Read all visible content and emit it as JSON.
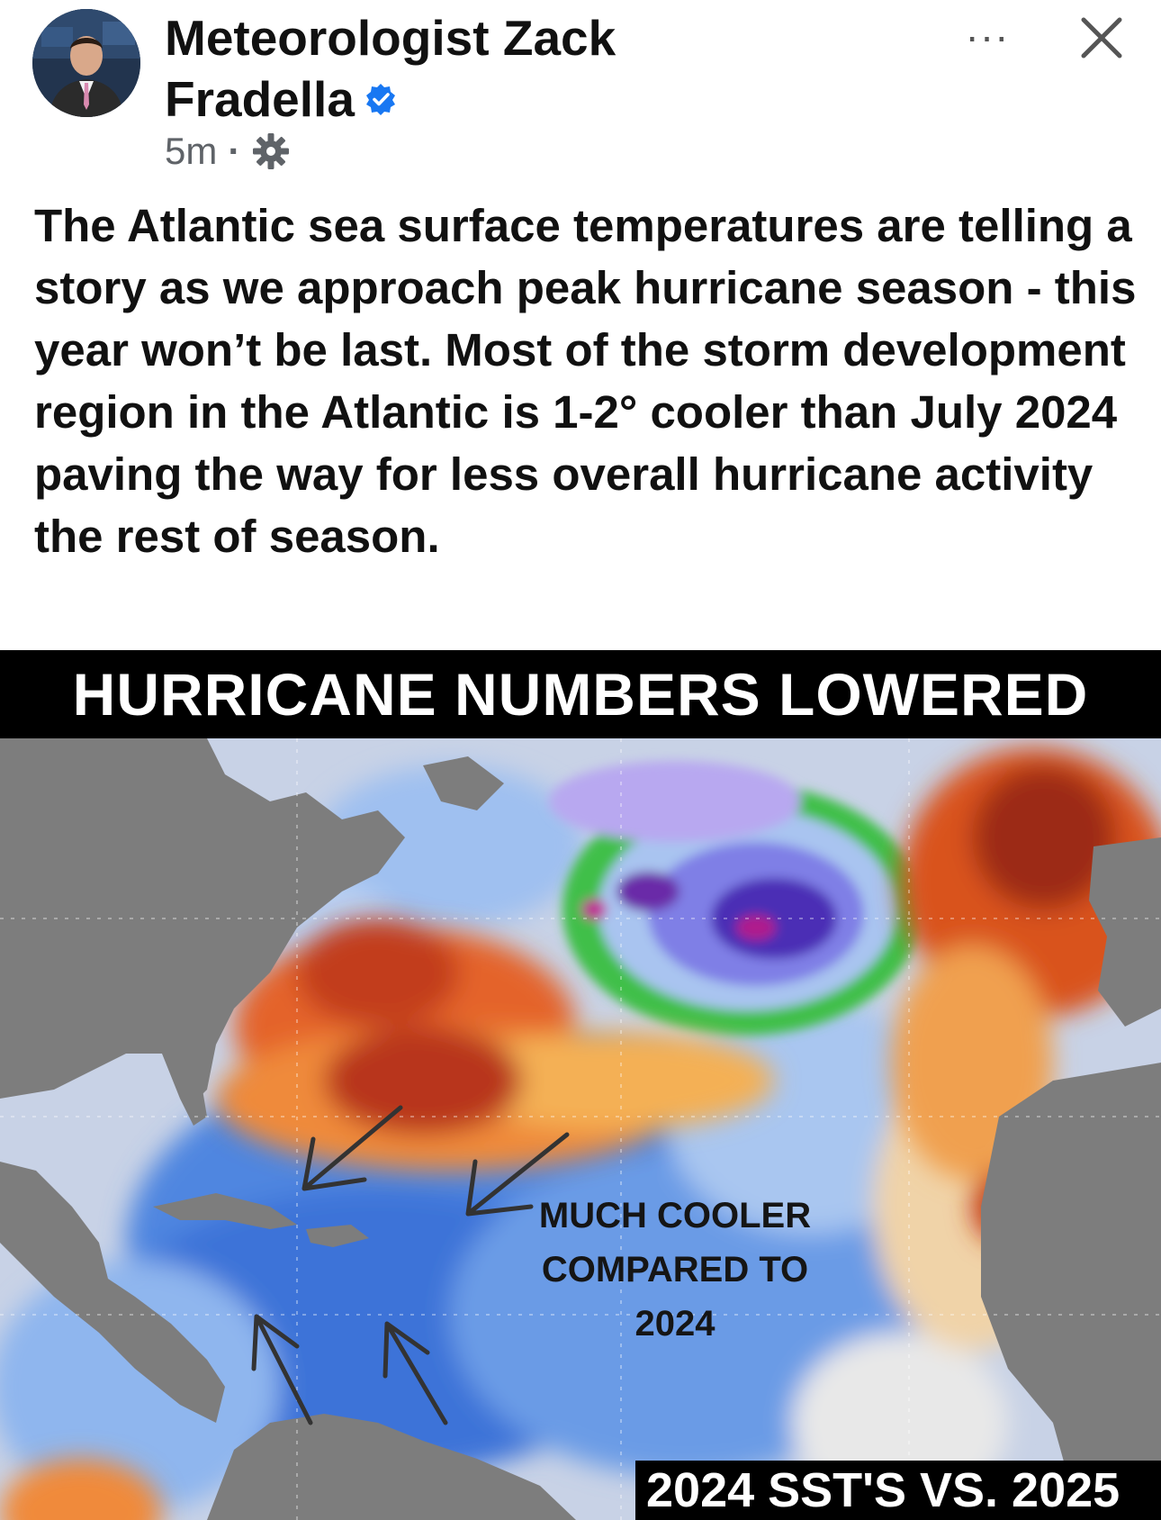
{
  "post": {
    "author_name": "Meteorologist Zack Fradella",
    "verified_icon": "verified-badge-icon",
    "timestamp": "5m",
    "separator": "·",
    "audience_icon": "gear-icon",
    "more_label": "···",
    "body": "The Atlantic sea surface temperatures are telling a story as we approach peak hurricane season - this year won’t be last. Most of the storm development region in the Atlantic is 1-2° cooler than July 2024 paving the way for less overall hurricane activity the rest of season."
  },
  "image": {
    "banner": "HURRICANE NUMBERS LOWERED",
    "annotation": "MUCH COOLER\nCOMPARED TO\n2024",
    "corner_label": "2024 SST'S VS. 2025"
  },
  "colors": {
    "verified": "#1877f2",
    "meta": "#5f6368",
    "warm": "#d94a1e",
    "cool": "#3f7fe0",
    "land": "#7a7a7a"
  }
}
